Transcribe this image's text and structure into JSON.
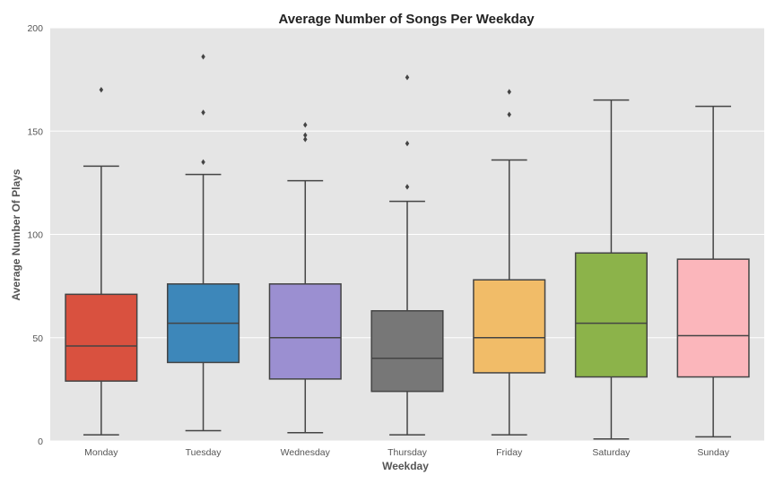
{
  "chart_data": {
    "type": "box",
    "title": "Average Number of Songs Per Weekday",
    "xlabel": "Weekday",
    "ylabel": "Average Number Of Plays",
    "ylim": [
      0,
      200
    ],
    "yticks": [
      "0",
      "50",
      "100",
      "150",
      "200"
    ],
    "grid": true,
    "background": "#e5e5e5",
    "categories": [
      "Monday",
      "Tuesday",
      "Wednesday",
      "Thursday",
      "Friday",
      "Saturday",
      "Sunday"
    ],
    "boxes": [
      {
        "category": "Monday",
        "min": 3,
        "q1": 29,
        "median": 46,
        "q3": 71,
        "max": 133,
        "outliers": [
          170
        ],
        "color": "#d9513f"
      },
      {
        "category": "Tuesday",
        "min": 5,
        "q1": 38,
        "median": 57,
        "q3": 76,
        "max": 129,
        "outliers": [
          135,
          159,
          186
        ],
        "color": "#3d87ba"
      },
      {
        "category": "Wednesday",
        "min": 4,
        "q1": 30,
        "median": 50,
        "q3": 76,
        "max": 126,
        "outliers": [
          146,
          148,
          153
        ],
        "color": "#9b8fd1"
      },
      {
        "category": "Thursday",
        "min": 3,
        "q1": 24,
        "median": 40,
        "q3": 63,
        "max": 116,
        "outliers": [
          123,
          144,
          176
        ],
        "color": "#777777"
      },
      {
        "category": "Friday",
        "min": 3,
        "q1": 33,
        "median": 50,
        "q3": 78,
        "max": 136,
        "outliers": [
          158,
          169
        ],
        "color": "#f1bc68"
      },
      {
        "category": "Saturday",
        "min": 1,
        "q1": 31,
        "median": 57,
        "q3": 91,
        "max": 165,
        "outliers": [],
        "color": "#8cb34a"
      },
      {
        "category": "Sunday",
        "min": 2,
        "q1": 31,
        "median": 51,
        "q3": 88,
        "max": 162,
        "outliers": [],
        "color": "#fbb6bb"
      }
    ]
  }
}
